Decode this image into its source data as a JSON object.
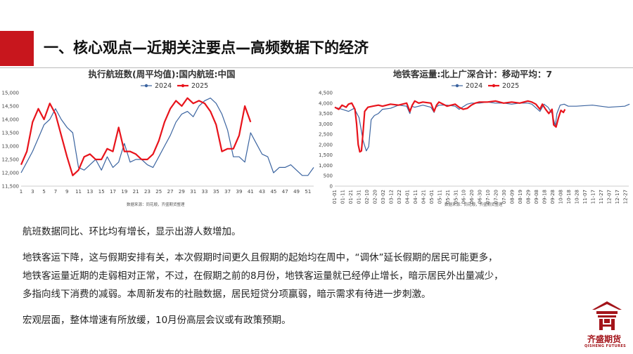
{
  "slide": {
    "title": "一、核心观点—近期关注要点—高频数据下的经济",
    "paragraphs": [
      "航班数据同比、环比均有增长，显示出游人数增加。",
      "地铁客运下降，这与假期安排有关，本次假期时间更久且假期的起始均在周中，“调休”延长假期的居民可能更多，",
      "地铁客运量近期的走弱相对正常，不过，在假期之前的8月份，地铁客运量就已经停止增长，暗示居民外出量减少，",
      "多指向线下消费的减弱。本周新发布的社融数据，居民短贷分项赢弱，暗示需求有待进一步刺激。",
      "宏观层面，整体增速有所放缓，10月份高层会议或有政策预期。"
    ],
    "logo": {
      "name": "齐盛期货",
      "subtitle": "QISHENG FUTURES"
    }
  },
  "colors": {
    "accent": "#c8161d",
    "series_2024": "#3b64a0",
    "series_2025": "#e8131b"
  },
  "chart_data": [
    {
      "type": "line",
      "title": "执行航班数(周平均值):国内航班:中国",
      "source": "数据来源：同花顺，齐盛期货整理",
      "x_ticks": [
        "1",
        "3",
        "5",
        "7",
        "9",
        "11",
        "13",
        "15",
        "17",
        "19",
        "21",
        "23",
        "25",
        "27",
        "29",
        "31",
        "33",
        "35",
        "37",
        "39",
        "41",
        "43",
        "45",
        "47",
        "49",
        "51"
      ],
      "y_ticks": [
        "11,500",
        "12,000",
        "12,500",
        "13,000",
        "13,500",
        "14,000",
        "14,500",
        "15,000"
      ],
      "ylim": [
        11500,
        15000
      ],
      "xlim": [
        1,
        52
      ],
      "series": [
        {
          "name": "2024",
          "x": [
            1,
            2,
            3,
            4,
            5,
            6,
            7,
            8,
            9,
            10,
            11,
            12,
            13,
            14,
            15,
            16,
            17,
            18,
            19,
            20,
            21,
            22,
            23,
            24,
            25,
            26,
            27,
            28,
            29,
            30,
            31,
            32,
            33,
            34,
            35,
            36,
            37,
            38,
            39,
            40,
            41,
            42,
            43,
            44,
            45,
            46,
            47,
            48,
            49,
            50,
            51,
            52
          ],
          "values": [
            12000,
            12400,
            12800,
            13300,
            13800,
            14000,
            14400,
            14000,
            13700,
            13500,
            12200,
            12100,
            12300,
            12500,
            12100,
            12600,
            12200,
            12400,
            13100,
            12400,
            12500,
            12500,
            12300,
            12200,
            12600,
            13000,
            13400,
            13900,
            14200,
            14300,
            14100,
            14500,
            14700,
            14800,
            14600,
            14200,
            13600,
            12600,
            12600,
            12400,
            13500,
            13100,
            12700,
            12600,
            12000,
            12200,
            12200,
            12300,
            12100,
            11900,
            11900,
            12200
          ]
        },
        {
          "name": "2025",
          "x": [
            1,
            2,
            3,
            4,
            5,
            6,
            7,
            8,
            9,
            10,
            11,
            12,
            13,
            14,
            15,
            16,
            17,
            18,
            19,
            20,
            21,
            22,
            23,
            24,
            25,
            26,
            27,
            28,
            29,
            30,
            31,
            32,
            33,
            34,
            35,
            36,
            37,
            38,
            39,
            40,
            41
          ],
          "values": [
            12300,
            12800,
            13900,
            14400,
            14000,
            14600,
            14200,
            13400,
            12600,
            11900,
            12100,
            12600,
            12700,
            12500,
            12500,
            12900,
            12800,
            13700,
            12800,
            12800,
            12700,
            12500,
            12500,
            12700,
            13200,
            13900,
            14400,
            14700,
            14500,
            14800,
            14600,
            14700,
            14600,
            14300,
            13800,
            12800,
            12900,
            12900,
            13400,
            14500,
            13900
          ]
        }
      ]
    },
    {
      "type": "line",
      "title": "地铁客运量:北上广深合计：移动平均：7",
      "source": "数据来源：同花顺，齐盛期货整理",
      "x_ticks": [
        "01-01",
        "01-11",
        "01-21",
        "01-31",
        "02-10",
        "02-20",
        "03-02",
        "03-12",
        "03-22",
        "04-01",
        "04-11",
        "04-21",
        "05-01",
        "05-11",
        "05-21",
        "05-31",
        "06-10",
        "06-20",
        "06-30",
        "07-10",
        "07-20",
        "07-30",
        "08-09",
        "08-19",
        "08-29",
        "09-08",
        "09-18",
        "09-28",
        "10-08",
        "10-18",
        "10-28",
        "11-07",
        "11-17",
        "11-27",
        "12-07",
        "12-17",
        "12-27"
      ],
      "y_ticks": [
        "0",
        "500",
        "1,000",
        "1,500",
        "2,000",
        "2,500",
        "3,000",
        "3,500",
        "4,000",
        "4,500"
      ],
      "ylim": [
        0,
        4500
      ],
      "xlim": [
        1,
        365
      ],
      "series": [
        {
          "name": "2024",
          "x": [
            1,
            10,
            18,
            25,
            31,
            36,
            40,
            43,
            46,
            50,
            55,
            60,
            70,
            80,
            90,
            94,
            96,
            100,
            110,
            120,
            124,
            126,
            130,
            140,
            150,
            155,
            165,
            170,
            180,
            190,
            200,
            210,
            220,
            230,
            240,
            245,
            255,
            260,
            265,
            270,
            274,
            276,
            280,
            285,
            290,
            300,
            320,
            340,
            360,
            366
          ],
          "values": [
            3800,
            3700,
            3600,
            3750,
            3300,
            2200,
            1700,
            1900,
            3200,
            3400,
            3500,
            3700,
            3750,
            3900,
            3850,
            3500,
            3850,
            3800,
            3900,
            3800,
            3550,
            3800,
            3900,
            3900,
            3850,
            3700,
            3950,
            4000,
            4000,
            4050,
            4000,
            4000,
            3950,
            4000,
            4000,
            3950,
            3600,
            3950,
            3800,
            3500,
            2900,
            3500,
            3900,
            3950,
            3850,
            3850,
            3900,
            3800,
            3850,
            3950
          ]
        },
        {
          "name": "2025",
          "x": [
            1,
            6,
            10,
            15,
            18,
            22,
            26,
            28,
            30,
            32,
            34,
            36,
            38,
            42,
            48,
            55,
            60,
            70,
            80,
            90,
            94,
            97,
            100,
            105,
            110,
            120,
            124,
            127,
            130,
            140,
            150,
            155,
            160,
            165,
            170,
            175,
            180,
            190,
            200,
            210,
            220,
            230,
            240,
            245,
            250,
            255,
            258,
            262,
            266,
            270,
            272,
            275,
            278,
            281,
            284,
            286
          ],
          "values": [
            3800,
            3700,
            3900,
            3800,
            3950,
            4000,
            3700,
            3000,
            2000,
            1650,
            1700,
            2600,
            3600,
            3800,
            3850,
            3900,
            3850,
            3950,
            3900,
            4000,
            3600,
            3900,
            4100,
            4000,
            4050,
            4000,
            3600,
            3900,
            4050,
            3850,
            3950,
            3800,
            3700,
            3750,
            3900,
            4000,
            4050,
            4050,
            4100,
            4000,
            4050,
            4000,
            4100,
            4050,
            3950,
            3700,
            3950,
            3700,
            3500,
            3700,
            2950,
            2850,
            3300,
            3650,
            3550,
            3700
          ]
        }
      ]
    }
  ]
}
